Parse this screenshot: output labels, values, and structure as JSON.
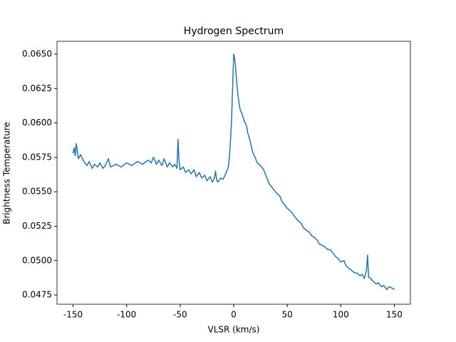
{
  "chart_data": {
    "type": "line",
    "title": "Hydrogen Spectrum",
    "x_label": "VLSR (km/s)",
    "y_label": "Brightness Temperature",
    "x": [
      -150,
      -149,
      -148,
      -147,
      -145,
      -143,
      -140,
      -137,
      -135,
      -132,
      -130,
      -127,
      -125,
      -122,
      -120,
      -117,
      -115,
      -110,
      -105,
      -100,
      -95,
      -90,
      -85,
      -80,
      -77,
      -75,
      -72,
      -70,
      -67,
      -65,
      -62,
      -60,
      -57,
      -55,
      -53,
      -52,
      -51,
      -50,
      -47,
      -45,
      -42,
      -40,
      -37,
      -35,
      -32,
      -30,
      -27,
      -25,
      -22,
      -20,
      -18,
      -17,
      -16,
      -15,
      -12,
      -10,
      -8,
      -7,
      -5,
      -4,
      -3,
      -2,
      -1,
      0,
      1,
      2,
      3,
      4,
      5,
      6,
      8,
      10,
      12,
      13,
      15,
      17,
      18,
      20,
      22,
      25,
      28,
      30,
      33,
      36,
      40,
      43,
      45,
      48,
      50,
      53,
      55,
      58,
      60,
      63,
      65,
      68,
      70,
      73,
      75,
      78,
      80,
      83,
      85,
      88,
      90,
      93,
      95,
      98,
      100,
      103,
      105,
      108,
      110,
      113,
      115,
      118,
      120,
      122,
      124,
      125,
      126,
      128,
      130,
      133,
      135,
      138,
      140,
      143,
      145,
      148,
      150
    ],
    "series": [
      {
        "name": "Hydrogen Spectrum",
        "color": "#1f77b4",
        "values": [
          0.0578,
          0.0582,
          0.0576,
          0.0585,
          0.0574,
          0.0577,
          0.0572,
          0.0569,
          0.0572,
          0.0567,
          0.057,
          0.0568,
          0.0571,
          0.0567,
          0.0569,
          0.0574,
          0.0568,
          0.057,
          0.0568,
          0.0571,
          0.0569,
          0.0572,
          0.057,
          0.0573,
          0.0571,
          0.0575,
          0.057,
          0.0573,
          0.0569,
          0.0574,
          0.0568,
          0.0571,
          0.0568,
          0.057,
          0.0567,
          0.0588,
          0.0572,
          0.0566,
          0.0568,
          0.0564,
          0.0566,
          0.0563,
          0.0566,
          0.0561,
          0.0564,
          0.056,
          0.0562,
          0.0558,
          0.0561,
          0.0557,
          0.056,
          0.0565,
          0.0559,
          0.0557,
          0.056,
          0.0559,
          0.0562,
          0.0564,
          0.0568,
          0.0575,
          0.0587,
          0.0602,
          0.0626,
          0.065,
          0.0646,
          0.0638,
          0.0628,
          0.062,
          0.0614,
          0.061,
          0.0606,
          0.0601,
          0.0598,
          0.0593,
          0.0588,
          0.0581,
          0.0578,
          0.0575,
          0.0571,
          0.0569,
          0.0566,
          0.0562,
          0.0556,
          0.0553,
          0.0549,
          0.0547,
          0.0543,
          0.054,
          0.0538,
          0.0536,
          0.0534,
          0.0531,
          0.0529,
          0.0527,
          0.0524,
          0.0522,
          0.0521,
          0.0518,
          0.0517,
          0.0515,
          0.0512,
          0.0511,
          0.051,
          0.0508,
          0.0508,
          0.0505,
          0.0503,
          0.0501,
          0.0499,
          0.05,
          0.0496,
          0.0494,
          0.0493,
          0.0491,
          0.0491,
          0.0489,
          0.049,
          0.0487,
          0.0493,
          0.0504,
          0.0488,
          0.0487,
          0.0485,
          0.0483,
          0.0484,
          0.0481,
          0.0482,
          0.0479,
          0.0481,
          0.048,
          0.0479
        ]
      }
    ],
    "xlim": [
      -165,
      165
    ],
    "ylim": [
      0.04683,
      0.06593
    ],
    "xticks": [
      -150,
      -100,
      -50,
      0,
      50,
      100,
      150
    ],
    "yticks": [
      0.0475,
      {
        "value": 0.05,
        "label": "0.0500"
      },
      0.0525,
      {
        "value": 0.055,
        "label": "0.0550"
      },
      0.0575,
      {
        "value": 0.06,
        "label": "0.0600"
      },
      0.0625,
      {
        "value": 0.065,
        "label": "0.0650"
      }
    ]
  }
}
